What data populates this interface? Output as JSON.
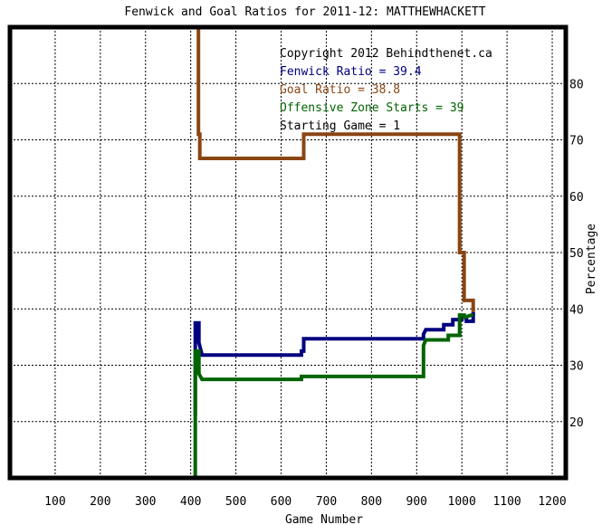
{
  "chart_data": {
    "type": "line",
    "title": "Fenwick and Goal Ratios for 2011-12: MATTHEWHACKETT",
    "xlabel": "Game Number",
    "ylabel": "Percentage",
    "xlim": [
      0,
      1230
    ],
    "ylim": [
      10,
      90
    ],
    "x_ticks": [
      100,
      200,
      300,
      400,
      500,
      600,
      700,
      800,
      900,
      1000,
      1100,
      1200
    ],
    "y_ticks": [
      20,
      30,
      40,
      50,
      60,
      70,
      80
    ],
    "grid": true,
    "annotations": [
      {
        "text": "Copyright 2012 Behindthenet.ca",
        "color": "#000000"
      },
      {
        "text": "Fenwick Ratio = 39.4",
        "color": "#000080"
      },
      {
        "text": "Goal Ratio = 38.8",
        "color": "#8B4513"
      },
      {
        "text": "Offensive Zone Starts = 39",
        "color": "#006400"
      },
      {
        "text": "Starting Game = 1",
        "color": "#000000"
      }
    ],
    "series": [
      {
        "color": "#8B4513",
        "x": [
          410,
          410,
          417,
          417,
          420,
          420,
          640,
          640,
          650,
          650,
          995,
          995,
          1005,
          1005,
          1010,
          1010,
          1025,
          1025
        ],
        "y": [
          90,
          90,
          90,
          71,
          71,
          66.7,
          66.7,
          66.7,
          66.7,
          71,
          71,
          50,
          50,
          41.5,
          41.5,
          41.5,
          41.5,
          38.8
        ]
      },
      {
        "color": "#000080",
        "x": [
          410,
          410,
          418,
          418,
          425,
          645,
          645,
          650,
          650,
          915,
          915,
          920,
          960,
          960,
          980,
          980,
          1000,
          1000,
          1010,
          1010,
          1025,
          1025
        ],
        "y": [
          21,
          37.5,
          37.5,
          34,
          31.8,
          31.8,
          32.5,
          32.5,
          34.7,
          34.7,
          35.5,
          36.3,
          36.3,
          37.2,
          37.2,
          38.1,
          38.1,
          38.5,
          38.5,
          37.8,
          37.8,
          39.4
        ]
      },
      {
        "color": "#006400",
        "x": [
          410,
          410,
          418,
          418,
          425,
          645,
          645,
          915,
          915,
          920,
          970,
          970,
          995,
          995,
          1005,
          1005,
          1025
        ],
        "y": [
          10,
          32.5,
          32.5,
          28.5,
          27.5,
          27.5,
          28,
          28,
          33.5,
          34.5,
          34.5,
          35.3,
          35.3,
          38.9,
          38.9,
          38.5,
          39
        ]
      }
    ]
  }
}
